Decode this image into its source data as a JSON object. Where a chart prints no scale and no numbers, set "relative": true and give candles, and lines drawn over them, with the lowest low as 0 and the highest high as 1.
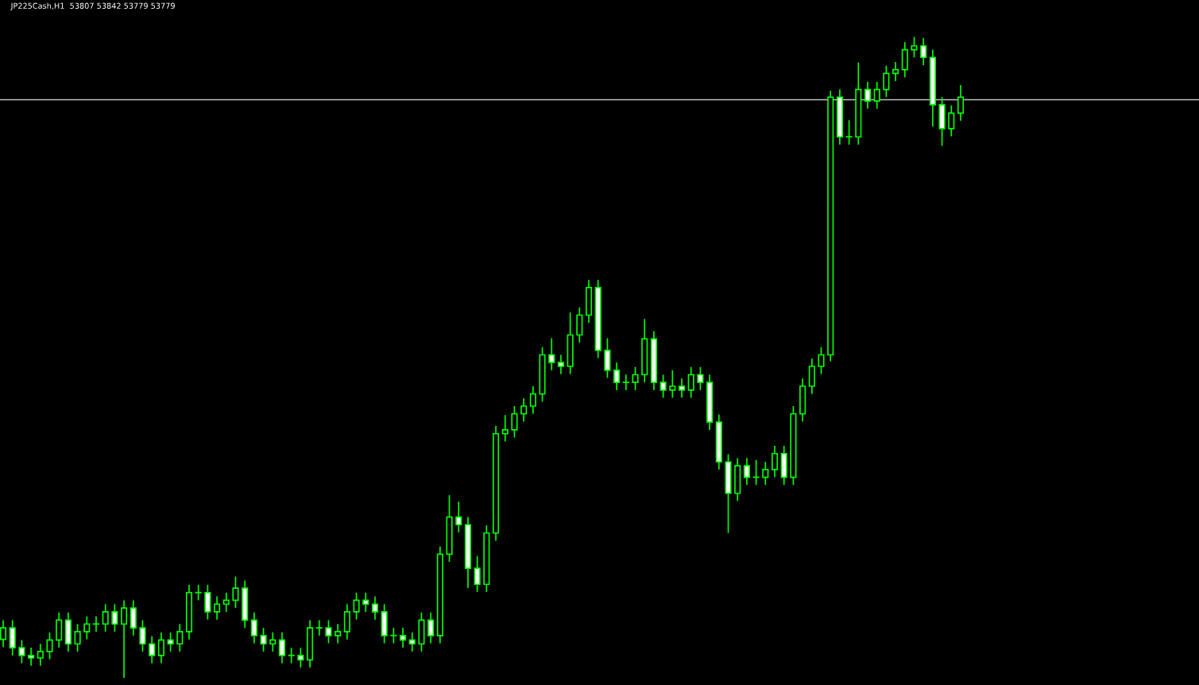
{
  "chart_data": {
    "type": "candlestick",
    "title": "JP225Cash,H1  53807 53842 53779 53779",
    "relative": true,
    "categories": [
      null,
      null,
      null,
      null,
      null,
      null,
      null,
      null,
      null,
      null,
      null,
      null,
      null,
      null,
      null,
      null,
      null,
      null,
      null,
      null,
      null,
      null,
      null,
      null,
      null,
      null,
      null,
      null,
      null,
      null,
      null,
      null,
      null,
      null,
      null,
      null,
      null,
      null,
      null,
      null,
      null,
      null,
      null,
      null,
      null,
      null,
      null,
      null,
      null,
      null,
      null,
      null,
      null,
      null,
      null,
      null,
      null,
      null,
      null,
      null,
      null,
      null,
      null,
      null,
      null,
      null,
      null,
      null,
      null,
      null,
      null,
      null,
      null,
      null,
      null,
      null,
      null,
      null,
      null,
      null,
      null,
      null,
      null,
      null,
      null,
      null,
      null,
      null,
      null,
      null,
      null,
      null,
      null,
      null,
      null,
      null,
      null,
      null,
      null,
      null,
      null,
      null,
      null,
      null
    ],
    "series": [
      {
        "color": "#00ff00",
        "ohlc": [
          [
            0.06,
            0.09,
            0.048,
            0.078
          ],
          [
            0.078,
            0.09,
            0.035,
            0.047
          ],
          [
            0.047,
            0.059,
            0.023,
            0.035
          ],
          [
            0.035,
            0.047,
            0.019,
            0.031
          ],
          [
            0.031,
            0.053,
            0.019,
            0.041
          ],
          [
            0.041,
            0.071,
            0.029,
            0.059
          ],
          [
            0.059,
            0.102,
            0.047,
            0.09
          ],
          [
            0.09,
            0.102,
            0.041,
            0.053
          ],
          [
            0.053,
            0.084,
            0.041,
            0.072
          ],
          [
            0.072,
            0.096,
            0.06,
            0.084
          ],
          [
            0.084,
            0.096,
            0.072,
            0.084
          ],
          [
            0.084,
            0.115,
            0.072,
            0.103
          ],
          [
            0.103,
            0.115,
            0.072,
            0.084
          ],
          [
            0.084,
            0.121,
            0.0,
            0.109
          ],
          [
            0.109,
            0.121,
            0.066,
            0.078
          ],
          [
            0.078,
            0.09,
            0.041,
            0.053
          ],
          [
            0.053,
            0.065,
            0.023,
            0.035
          ],
          [
            0.035,
            0.071,
            0.023,
            0.059
          ],
          [
            0.059,
            0.071,
            0.041,
            0.053
          ],
          [
            0.053,
            0.084,
            0.041,
            0.072
          ],
          [
            0.072,
            0.145,
            0.06,
            0.133
          ],
          [
            0.133,
            0.145,
            0.121,
            0.133
          ],
          [
            0.133,
            0.145,
            0.091,
            0.103
          ],
          [
            0.103,
            0.127,
            0.091,
            0.115
          ],
          [
            0.115,
            0.133,
            0.103,
            0.121
          ],
          [
            0.121,
            0.158,
            0.109,
            0.14
          ],
          [
            0.14,
            0.152,
            0.078,
            0.09
          ],
          [
            0.09,
            0.102,
            0.054,
            0.066
          ],
          [
            0.066,
            0.078,
            0.041,
            0.053
          ],
          [
            0.053,
            0.071,
            0.041,
            0.059
          ],
          [
            0.059,
            0.071,
            0.023,
            0.035
          ],
          [
            0.035,
            0.047,
            0.023,
            0.035
          ],
          [
            0.035,
            0.047,
            0.016,
            0.028
          ],
          [
            0.028,
            0.09,
            0.016,
            0.078
          ],
          [
            0.078,
            0.09,
            0.066,
            0.078
          ],
          [
            0.078,
            0.09,
            0.054,
            0.066
          ],
          [
            0.066,
            0.084,
            0.054,
            0.072
          ],
          [
            0.072,
            0.115,
            0.06,
            0.103
          ],
          [
            0.103,
            0.133,
            0.091,
            0.121
          ],
          [
            0.121,
            0.133,
            0.103,
            0.115
          ],
          [
            0.115,
            0.127,
            0.091,
            0.103
          ],
          [
            0.103,
            0.115,
            0.054,
            0.066
          ],
          [
            0.066,
            0.078,
            0.054,
            0.066
          ],
          [
            0.066,
            0.078,
            0.047,
            0.059
          ],
          [
            0.059,
            0.071,
            0.041,
            0.053
          ],
          [
            0.053,
            0.102,
            0.041,
            0.09
          ],
          [
            0.09,
            0.102,
            0.054,
            0.066
          ],
          [
            0.066,
            0.205,
            0.054,
            0.193
          ],
          [
            0.193,
            0.285,
            0.181,
            0.251
          ],
          [
            0.251,
            0.275,
            0.227,
            0.239
          ],
          [
            0.239,
            0.251,
            0.14,
            0.171
          ],
          [
            0.171,
            0.19,
            0.134,
            0.146
          ],
          [
            0.146,
            0.238,
            0.134,
            0.226
          ],
          [
            0.226,
            0.393,
            0.214,
            0.381
          ],
          [
            0.381,
            0.41,
            0.369,
            0.387
          ],
          [
            0.387,
            0.424,
            0.375,
            0.412
          ],
          [
            0.412,
            0.436,
            0.4,
            0.424
          ],
          [
            0.424,
            0.455,
            0.412,
            0.443
          ],
          [
            0.443,
            0.516,
            0.431,
            0.504
          ],
          [
            0.504,
            0.53,
            0.48,
            0.492
          ],
          [
            0.492,
            0.504,
            0.474,
            0.486
          ],
          [
            0.486,
            0.57,
            0.474,
            0.535
          ],
          [
            0.535,
            0.578,
            0.523,
            0.566
          ],
          [
            0.566,
            0.621,
            0.554,
            0.609
          ],
          [
            0.609,
            0.621,
            0.499,
            0.511
          ],
          [
            0.511,
            0.53,
            0.468,
            0.48
          ],
          [
            0.48,
            0.492,
            0.449,
            0.461
          ],
          [
            0.461,
            0.473,
            0.449,
            0.461
          ],
          [
            0.461,
            0.485,
            0.449,
            0.473
          ],
          [
            0.473,
            0.56,
            0.461,
            0.529
          ],
          [
            0.529,
            0.541,
            0.449,
            0.461
          ],
          [
            0.461,
            0.473,
            0.437,
            0.449
          ],
          [
            0.449,
            0.48,
            0.437,
            0.455
          ],
          [
            0.455,
            0.467,
            0.437,
            0.449
          ],
          [
            0.449,
            0.485,
            0.437,
            0.473
          ],
          [
            0.473,
            0.485,
            0.449,
            0.461
          ],
          [
            0.461,
            0.473,
            0.387,
            0.399
          ],
          [
            0.399,
            0.411,
            0.325,
            0.337
          ],
          [
            0.337,
            0.349,
            0.226,
            0.288
          ],
          [
            0.288,
            0.343,
            0.276,
            0.331
          ],
          [
            0.331,
            0.343,
            0.301,
            0.313
          ],
          [
            0.313,
            0.34,
            0.301,
            0.313
          ],
          [
            0.313,
            0.337,
            0.301,
            0.325
          ],
          [
            0.325,
            0.362,
            0.313,
            0.35
          ],
          [
            0.35,
            0.362,
            0.301,
            0.313
          ],
          [
            0.313,
            0.424,
            0.301,
            0.412
          ],
          [
            0.412,
            0.467,
            0.4,
            0.455
          ],
          [
            0.455,
            0.498,
            0.443,
            0.486
          ],
          [
            0.486,
            0.516,
            0.474,
            0.504
          ],
          [
            0.504,
            0.916,
            0.494,
            0.906
          ],
          [
            0.906,
            0.918,
            0.832,
            0.844
          ],
          [
            0.844,
            0.87,
            0.832,
            0.844
          ],
          [
            0.844,
            0.96,
            0.832,
            0.918
          ],
          [
            0.918,
            0.93,
            0.888,
            0.9
          ],
          [
            0.9,
            0.93,
            0.888,
            0.918
          ],
          [
            0.918,
            0.955,
            0.906,
            0.943
          ],
          [
            0.943,
            0.961,
            0.931,
            0.949
          ],
          [
            0.949,
            0.992,
            0.937,
            0.98
          ],
          [
            0.98,
            1.0,
            0.968,
            0.986
          ],
          [
            0.986,
            0.998,
            0.956,
            0.968
          ],
          [
            0.968,
            0.98,
            0.86,
            0.894
          ],
          [
            0.894,
            0.906,
            0.83,
            0.857
          ],
          [
            0.857,
            0.893,
            0.845,
            0.881
          ],
          [
            0.881,
            0.925,
            0.869,
            0.906
          ]
        ]
      }
    ],
    "ref_lines": [
      {
        "axis": "y",
        "value": 0.902,
        "color": "#c0c0c0"
      }
    ]
  }
}
